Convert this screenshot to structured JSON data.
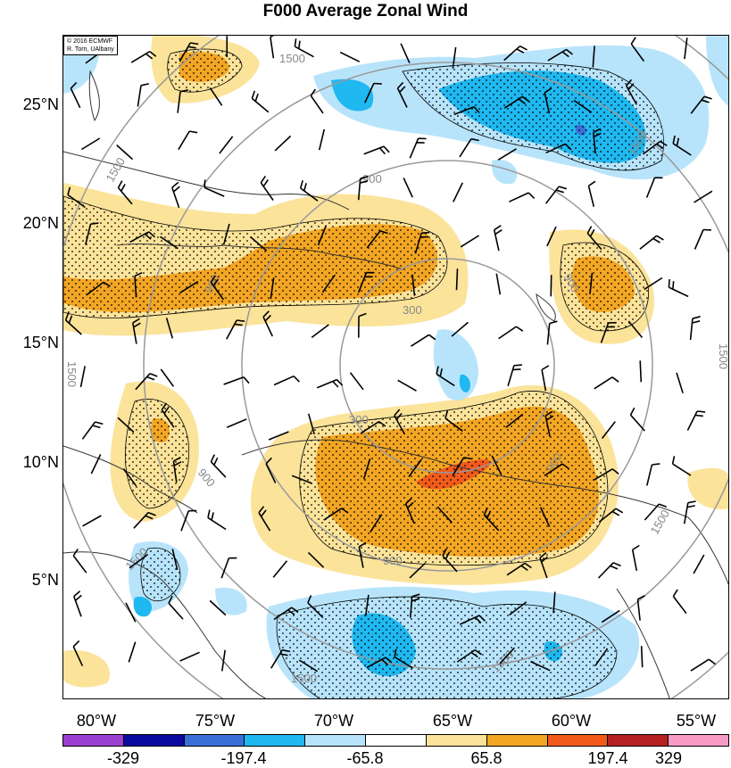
{
  "title": "F000 Average Zonal Wind",
  "credit": {
    "line1": "© 2016 ECMWF",
    "line2": "R. Torn, UAlbany"
  },
  "lat_labels": [
    "25°N",
    "20°N",
    "15°N",
    "10°N",
    "5°N"
  ],
  "lon_labels": [
    "80°W",
    "75°W",
    "70°W",
    "65°W",
    "60°W",
    "55°W"
  ],
  "colorbar": {
    "colors": [
      "#9b3fd1",
      "#0a0aa0",
      "#3a6fd8",
      "#1fb8f0",
      "#b8e4fb",
      "#ffffff",
      "#fbe39a",
      "#f3a623",
      "#f25a1c",
      "#b52121",
      "#f79ac6"
    ],
    "labels": [
      "-329",
      "-197.4",
      "-65.8",
      "65.8",
      "197.4",
      "329"
    ]
  },
  "contour_labels": [
    "1500",
    "1500",
    "900",
    "900",
    "900",
    "900",
    "300",
    "300",
    "900",
    "1500",
    "1500",
    "1500",
    "1500",
    "1500",
    "1500",
    "900",
    "1500"
  ]
}
